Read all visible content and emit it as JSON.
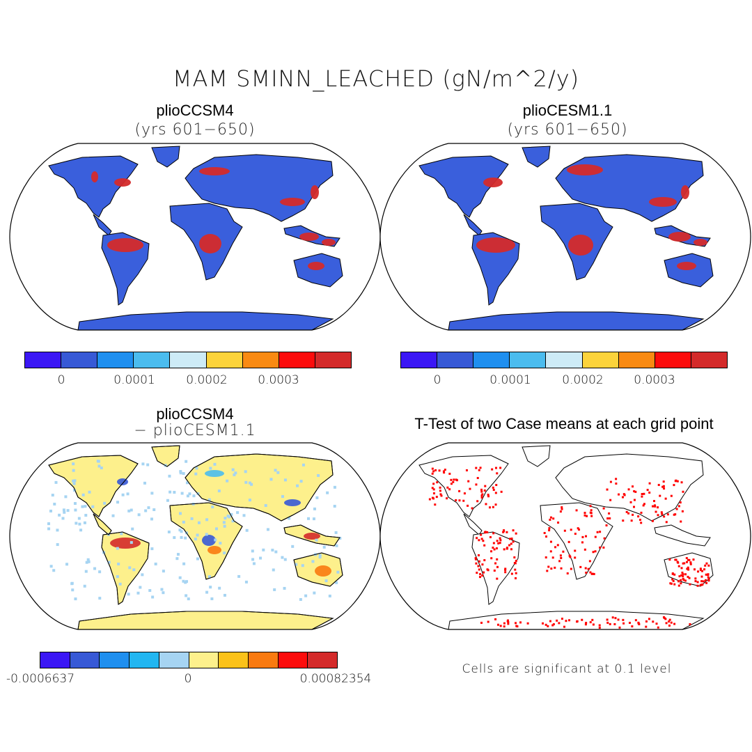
{
  "title": "MAM SMINN_LEACHED (gN/m^2/y)",
  "panels": [
    {
      "title": "plioCCSM4",
      "subtitle": "(yrs 601−650)"
    },
    {
      "title": "plioCESM1.1",
      "subtitle": "(yrs 601−650)"
    },
    {
      "title": "plioCCSM4",
      "subtitle": "− plioCESM1.1"
    },
    {
      "title": "T-Test of two Case means at each grid point",
      "subtitle": ""
    }
  ],
  "colorbars": {
    "abs": {
      "colors": [
        "#3b17f5",
        "#3759d6",
        "#1f8fef",
        "#4bbcee",
        "#cdebf6",
        "#fbd33b",
        "#f98a12",
        "#fc0c0c",
        "#d42a2a"
      ],
      "ticks": [
        "0",
        "0.0001",
        "0.0002",
        "0.0003"
      ]
    },
    "diff": {
      "colors": [
        "#3b17f5",
        "#3759d6",
        "#1f8fef",
        "#22b6f1",
        "#a6d4f2",
        "#fdf08c",
        "#fbc21a",
        "#f97a10",
        "#fc0c0c",
        "#d42a2a"
      ],
      "ticks": [
        "-0.0006637",
        "0",
        "0.00082354"
      ]
    }
  },
  "significance_note": "Cells are significant at 0.1 level",
  "colors": {
    "land": "#3a5fdc",
    "hot": "#d42a2a",
    "diff_land": "#fdf08c",
    "sig": "#ff0000"
  }
}
